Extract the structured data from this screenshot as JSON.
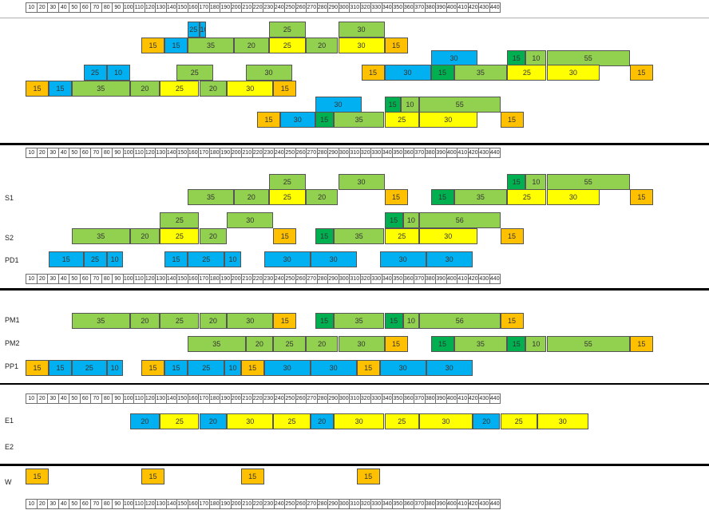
{
  "colors": {
    "green": "#92d050",
    "dark_green": "#00b050",
    "yellow": "#ffff00",
    "blue": "#00b0f0",
    "orange": "#ffc000",
    "divider": "#000000",
    "ruler_border": "#6e6e6e"
  },
  "ruler_labels": [
    "10",
    "20",
    "30",
    "40",
    "50",
    "60",
    "70",
    "80",
    "90",
    "100",
    "110",
    "120",
    "130",
    "140",
    "150",
    "160",
    "170",
    "180",
    "190",
    "200",
    "210",
    "220",
    "230",
    "240",
    "250",
    "260",
    "270",
    "280",
    "290",
    "300",
    "310",
    "320",
    "330",
    "340",
    "350",
    "360",
    "370",
    "380",
    "390",
    "400",
    "410",
    "420",
    "430",
    "440"
  ],
  "row_labels": {
    "s1": "S1",
    "s2": "S2",
    "pd1": "PD1",
    "pm1": "PM1",
    "pm2": "PM2",
    "pp1": "PP1",
    "e1": "E1",
    "e2": "E2",
    "w": "W"
  },
  "sections": [
    {
      "rows": [
        [
          {
            "s": 70,
            "e": 75,
            "label": "25",
            "color": "blue"
          },
          {
            "s": 75,
            "e": 78,
            "label": "10",
            "color": "blue"
          },
          {
            "s": 105,
            "e": 121,
            "label": "25",
            "color": "green"
          },
          {
            "s": 135,
            "e": 155,
            "label": "30",
            "color": "green"
          }
        ],
        [
          {
            "s": 50,
            "e": 60,
            "label": "15",
            "color": "orange"
          },
          {
            "s": 60,
            "e": 70,
            "label": "15",
            "color": "blue"
          },
          {
            "s": 70,
            "e": 90,
            "label": "35",
            "color": "green"
          },
          {
            "s": 90,
            "e": 105,
            "label": "20",
            "color": "green"
          },
          {
            "s": 105,
            "e": 121,
            "label": "25",
            "color": "yellow"
          },
          {
            "s": 121,
            "e": 135,
            "label": "20",
            "color": "green"
          },
          {
            "s": 135,
            "e": 155,
            "label": "30",
            "color": "yellow"
          },
          {
            "s": 155,
            "e": 165,
            "label": "15",
            "color": "orange"
          }
        ],
        [
          {
            "s": 175,
            "e": 195,
            "label": "30",
            "color": "blue"
          },
          {
            "s": 208,
            "e": 216,
            "label": "15",
            "color": "dark_green"
          },
          {
            "s": 216,
            "e": 225,
            "label": "10",
            "color": "green"
          },
          {
            "s": 225,
            "e": 261,
            "label": "55",
            "color": "green"
          }
        ],
        [
          {
            "s": 25,
            "e": 35,
            "label": "25",
            "color": "blue"
          },
          {
            "s": 35,
            "e": 45,
            "label": "10",
            "color": "blue"
          },
          {
            "s": 65,
            "e": 81,
            "label": "25",
            "color": "green"
          },
          {
            "s": 95,
            "e": 115,
            "label": "30",
            "color": "green"
          },
          {
            "s": 145,
            "e": 155,
            "label": "15",
            "color": "orange"
          },
          {
            "s": 155,
            "e": 175,
            "label": "30",
            "color": "blue"
          },
          {
            "s": 175,
            "e": 185,
            "label": "15",
            "color": "dark_green"
          },
          {
            "s": 185,
            "e": 208,
            "label": "35",
            "color": "green"
          },
          {
            "s": 208,
            "e": 225,
            "label": "25",
            "color": "yellow"
          },
          {
            "s": 225,
            "e": 248,
            "label": "30",
            "color": "yellow"
          },
          {
            "s": 261,
            "e": 271,
            "label": "15",
            "color": "orange"
          }
        ],
        [
          {
            "s": 0,
            "e": 10,
            "label": "15",
            "color": "orange"
          },
          {
            "s": 10,
            "e": 20,
            "label": "15",
            "color": "blue"
          },
          {
            "s": 20,
            "e": 45,
            "label": "35",
            "color": "green"
          },
          {
            "s": 45,
            "e": 58,
            "label": "20",
            "color": "green"
          },
          {
            "s": 58,
            "e": 75,
            "label": "25",
            "color": "yellow"
          },
          {
            "s": 75,
            "e": 87,
            "label": "20",
            "color": "green"
          },
          {
            "s": 87,
            "e": 107,
            "label": "30",
            "color": "yellow"
          },
          {
            "s": 107,
            "e": 117,
            "label": "15",
            "color": "orange"
          }
        ],
        [
          {
            "s": 125,
            "e": 145,
            "label": "30",
            "color": "blue"
          },
          {
            "s": 155,
            "e": 162,
            "label": "15",
            "color": "dark_green"
          },
          {
            "s": 162,
            "e": 170,
            "label": "10",
            "color": "green"
          },
          {
            "s": 170,
            "e": 205,
            "label": "55",
            "color": "green"
          }
        ],
        [
          {
            "s": 100,
            "e": 110,
            "label": "15",
            "color": "orange"
          },
          {
            "s": 110,
            "e": 125,
            "label": "30",
            "color": "blue"
          },
          {
            "s": 125,
            "e": 133,
            "label": "15",
            "color": "dark_green"
          },
          {
            "s": 133,
            "e": 155,
            "label": "35",
            "color": "green"
          },
          {
            "s": 155,
            "e": 170,
            "label": "25",
            "color": "yellow"
          },
          {
            "s": 170,
            "e": 195,
            "label": "30",
            "color": "yellow"
          },
          {
            "s": 205,
            "e": 215,
            "label": "15",
            "color": "orange"
          }
        ]
      ]
    },
    {
      "rows": [
        [
          {
            "s": 105,
            "e": 121,
            "label": "25",
            "color": "green"
          },
          {
            "s": 135,
            "e": 155,
            "label": "30",
            "color": "green"
          },
          {
            "s": 208,
            "e": 216,
            "label": "15",
            "color": "dark_green"
          },
          {
            "s": 216,
            "e": 225,
            "label": "10",
            "color": "green"
          },
          {
            "s": 225,
            "e": 261,
            "label": "55",
            "color": "green"
          }
        ],
        [
          {
            "s": 70,
            "e": 90,
            "label": "35",
            "color": "green"
          },
          {
            "s": 90,
            "e": 105,
            "label": "20",
            "color": "green"
          },
          {
            "s": 105,
            "e": 121,
            "label": "25",
            "color": "yellow"
          },
          {
            "s": 121,
            "e": 135,
            "label": "20",
            "color": "green"
          },
          {
            "s": 155,
            "e": 165,
            "label": "15",
            "color": "orange"
          },
          {
            "s": 175,
            "e": 185,
            "label": "15",
            "color": "dark_green"
          },
          {
            "s": 185,
            "e": 208,
            "label": "35",
            "color": "green"
          },
          {
            "s": 208,
            "e": 225,
            "label": "25",
            "color": "yellow"
          },
          {
            "s": 225,
            "e": 248,
            "label": "30",
            "color": "yellow"
          },
          {
            "s": 261,
            "e": 271,
            "label": "15",
            "color": "orange"
          }
        ],
        [
          {
            "s": 58,
            "e": 75,
            "label": "25",
            "color": "green"
          },
          {
            "s": 87,
            "e": 107,
            "label": "30",
            "color": "green"
          },
          {
            "s": 155,
            "e": 163,
            "label": "15",
            "color": "dark_green"
          },
          {
            "s": 163,
            "e": 170,
            "label": "10",
            "color": "green"
          },
          {
            "s": 170,
            "e": 205,
            "label": "56",
            "color": "green"
          }
        ],
        [
          {
            "s": 20,
            "e": 45,
            "label": "35",
            "color": "green"
          },
          {
            "s": 45,
            "e": 58,
            "label": "20",
            "color": "green"
          },
          {
            "s": 58,
            "e": 75,
            "label": "25",
            "color": "yellow"
          },
          {
            "s": 75,
            "e": 87,
            "label": "20",
            "color": "green"
          },
          {
            "s": 107,
            "e": 117,
            "label": "15",
            "color": "orange"
          },
          {
            "s": 125,
            "e": 133,
            "label": "15",
            "color": "dark_green"
          },
          {
            "s": 133,
            "e": 155,
            "label": "35",
            "color": "green"
          },
          {
            "s": 155,
            "e": 170,
            "label": "25",
            "color": "yellow"
          },
          {
            "s": 170,
            "e": 195,
            "label": "30",
            "color": "yellow"
          },
          {
            "s": 205,
            "e": 215,
            "label": "15",
            "color": "orange"
          }
        ],
        [
          {
            "s": 10,
            "e": 25,
            "label": "15",
            "color": "blue"
          },
          {
            "s": 25,
            "e": 35,
            "label": "25",
            "color": "blue"
          },
          {
            "s": 35,
            "e": 42,
            "label": "10",
            "color": "blue"
          },
          {
            "s": 60,
            "e": 70,
            "label": "15",
            "color": "blue"
          },
          {
            "s": 70,
            "e": 86,
            "label": "25",
            "color": "blue"
          },
          {
            "s": 86,
            "e": 93,
            "label": "10",
            "color": "blue"
          },
          {
            "s": 103,
            "e": 123,
            "label": "30",
            "color": "blue"
          },
          {
            "s": 123,
            "e": 143,
            "label": "30",
            "color": "blue"
          },
          {
            "s": 153,
            "e": 173,
            "label": "30",
            "color": "blue"
          },
          {
            "s": 173,
            "e": 193,
            "label": "30",
            "color": "blue"
          }
        ]
      ]
    },
    {
      "rows": [
        [
          {
            "s": 20,
            "e": 45,
            "label": "35",
            "color": "green"
          },
          {
            "s": 45,
            "e": 58,
            "label": "20",
            "color": "green"
          },
          {
            "s": 58,
            "e": 75,
            "label": "25",
            "color": "green"
          },
          {
            "s": 75,
            "e": 87,
            "label": "20",
            "color": "green"
          },
          {
            "s": 87,
            "e": 107,
            "label": "30",
            "color": "green"
          },
          {
            "s": 107,
            "e": 117,
            "label": "15",
            "color": "orange"
          },
          {
            "s": 125,
            "e": 133,
            "label": "15",
            "color": "dark_green"
          },
          {
            "s": 133,
            "e": 155,
            "label": "35",
            "color": "green"
          },
          {
            "s": 155,
            "e": 163,
            "label": "15",
            "color": "dark_green"
          },
          {
            "s": 163,
            "e": 170,
            "label": "10",
            "color": "green"
          },
          {
            "s": 170,
            "e": 205,
            "label": "56",
            "color": "green"
          },
          {
            "s": 205,
            "e": 215,
            "label": "15",
            "color": "orange"
          }
        ],
        [
          {
            "s": 70,
            "e": 95,
            "label": "35",
            "color": "green"
          },
          {
            "s": 95,
            "e": 107,
            "label": "20",
            "color": "green"
          },
          {
            "s": 107,
            "e": 121,
            "label": "25",
            "color": "green"
          },
          {
            "s": 121,
            "e": 135,
            "label": "20",
            "color": "green"
          },
          {
            "s": 135,
            "e": 155,
            "label": "30",
            "color": "green"
          },
          {
            "s": 155,
            "e": 165,
            "label": "15",
            "color": "orange"
          },
          {
            "s": 175,
            "e": 185,
            "label": "15",
            "color": "dark_green"
          },
          {
            "s": 185,
            "e": 208,
            "label": "35",
            "color": "green"
          },
          {
            "s": 208,
            "e": 216,
            "label": "15",
            "color": "dark_green"
          },
          {
            "s": 216,
            "e": 225,
            "label": "10",
            "color": "green"
          },
          {
            "s": 225,
            "e": 261,
            "label": "55",
            "color": "green"
          },
          {
            "s": 261,
            "e": 271,
            "label": "15",
            "color": "orange"
          }
        ],
        [
          {
            "s": 0,
            "e": 10,
            "label": "15",
            "color": "orange"
          },
          {
            "s": 10,
            "e": 20,
            "label": "15",
            "color": "blue"
          },
          {
            "s": 20,
            "e": 35,
            "label": "25",
            "color": "blue"
          },
          {
            "s": 35,
            "e": 42,
            "label": "10",
            "color": "blue"
          },
          {
            "s": 50,
            "e": 60,
            "label": "15",
            "color": "orange"
          },
          {
            "s": 60,
            "e": 70,
            "label": "15",
            "color": "blue"
          },
          {
            "s": 70,
            "e": 86,
            "label": "25",
            "color": "blue"
          },
          {
            "s": 86,
            "e": 93,
            "label": "10",
            "color": "blue"
          },
          {
            "s": 93,
            "e": 103,
            "label": "15",
            "color": "orange"
          },
          {
            "s": 103,
            "e": 123,
            "label": "30",
            "color": "blue"
          },
          {
            "s": 123,
            "e": 143,
            "label": "30",
            "color": "blue"
          },
          {
            "s": 143,
            "e": 153,
            "label": "15",
            "color": "orange"
          },
          {
            "s": 153,
            "e": 173,
            "label": "30",
            "color": "blue"
          },
          {
            "s": 173,
            "e": 193,
            "label": "30",
            "color": "blue"
          }
        ]
      ]
    },
    {
      "rows": [
        [
          {
            "s": 45,
            "e": 58,
            "label": "20",
            "color": "blue"
          },
          {
            "s": 58,
            "e": 75,
            "label": "25",
            "color": "yellow"
          },
          {
            "s": 75,
            "e": 87,
            "label": "20",
            "color": "blue"
          },
          {
            "s": 87,
            "e": 107,
            "label": "30",
            "color": "yellow"
          },
          {
            "s": 107,
            "e": 123,
            "label": "25",
            "color": "yellow"
          },
          {
            "s": 123,
            "e": 133,
            "label": "20",
            "color": "blue"
          },
          {
            "s": 133,
            "e": 155,
            "label": "30",
            "color": "yellow"
          },
          {
            "s": 155,
            "e": 170,
            "label": "25",
            "color": "yellow"
          },
          {
            "s": 170,
            "e": 193,
            "label": "30",
            "color": "yellow"
          },
          {
            "s": 193,
            "e": 205,
            "label": "20",
            "color": "blue"
          },
          {
            "s": 205,
            "e": 221,
            "label": "25",
            "color": "yellow"
          },
          {
            "s": 221,
            "e": 243,
            "label": "30",
            "color": "yellow"
          }
        ],
        []
      ]
    },
    {
      "rows": [
        [
          {
            "s": 0,
            "e": 10,
            "label": "15",
            "color": "orange"
          },
          {
            "s": 50,
            "e": 60,
            "label": "15",
            "color": "orange"
          },
          {
            "s": 93,
            "e": 103,
            "label": "15",
            "color": "orange"
          },
          {
            "s": 143,
            "e": 153,
            "label": "15",
            "color": "orange"
          }
        ]
      ]
    }
  ]
}
